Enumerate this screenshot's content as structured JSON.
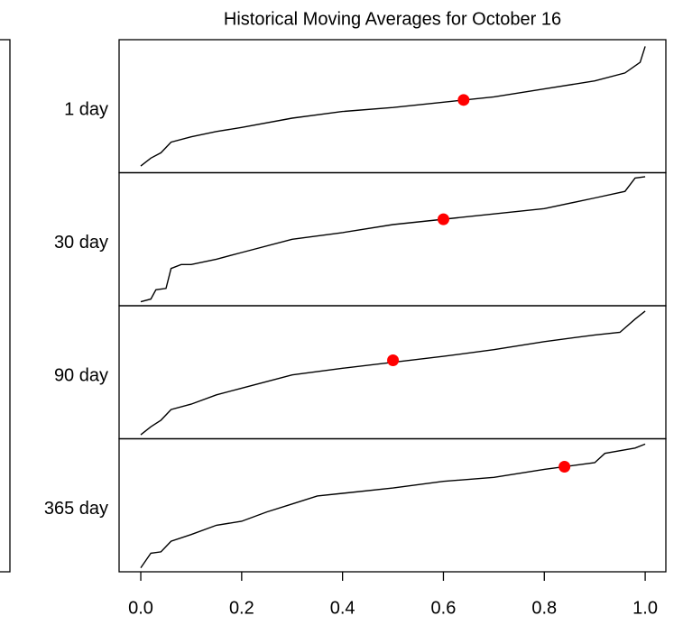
{
  "chart_data": {
    "type": "line",
    "title": "Historical Moving Averages for October 16",
    "xlim": [
      -0.043,
      1.041
    ],
    "xticks": [
      {
        "value": 0,
        "label": "0.0"
      },
      0.2,
      0.4,
      0.6,
      0.8,
      {
        "value": 1,
        "label": "1.0"
      }
    ],
    "line_color": "#000000",
    "point_color": "#ff0000",
    "panels": [
      {
        "name": "1 day",
        "ylim": [
          0,
          1
        ],
        "x": [
          0,
          0.02,
          0.04,
          0.06,
          0.1,
          0.15,
          0.2,
          0.3,
          0.4,
          0.5,
          0.6,
          0.7,
          0.8,
          0.9,
          0.96,
          0.99,
          1.0
        ],
        "values": [
          0.05,
          0.11,
          0.15,
          0.23,
          0.27,
          0.31,
          0.34,
          0.41,
          0.46,
          0.49,
          0.53,
          0.57,
          0.63,
          0.69,
          0.75,
          0.83,
          0.95
        ],
        "point": {
          "x": 0.64,
          "y": 0.547
        }
      },
      {
        "name": "30 day",
        "ylim": [
          0,
          1
        ],
        "x": [
          0,
          0.02,
          0.03,
          0.05,
          0.06,
          0.08,
          0.1,
          0.15,
          0.2,
          0.3,
          0.4,
          0.5,
          0.7,
          0.8,
          0.9,
          0.96,
          0.98,
          1.0
        ],
        "values": [
          0.03,
          0.05,
          0.12,
          0.13,
          0.28,
          0.31,
          0.31,
          0.35,
          0.4,
          0.5,
          0.55,
          0.61,
          0.69,
          0.73,
          0.81,
          0.86,
          0.96,
          0.97
        ],
        "point": {
          "x": 0.6,
          "y": 0.65
        }
      },
      {
        "name": "90 day",
        "ylim": [
          0,
          1
        ],
        "x": [
          0,
          0.02,
          0.04,
          0.06,
          0.1,
          0.15,
          0.2,
          0.3,
          0.4,
          0.6,
          0.7,
          0.8,
          0.9,
          0.95,
          0.98,
          1.0
        ],
        "values": [
          0.03,
          0.09,
          0.14,
          0.22,
          0.26,
          0.33,
          0.38,
          0.48,
          0.53,
          0.62,
          0.67,
          0.73,
          0.78,
          0.8,
          0.9,
          0.96
        ],
        "point": {
          "x": 0.5,
          "y": 0.59
        }
      },
      {
        "name": "365 day",
        "ylim": [
          0,
          1
        ],
        "x": [
          0,
          0.02,
          0.04,
          0.06,
          0.1,
          0.15,
          0.2,
          0.25,
          0.3,
          0.35,
          0.4,
          0.5,
          0.6,
          0.7,
          0.8,
          0.9,
          0.92,
          0.98,
          1.0
        ],
        "values": [
          0.03,
          0.14,
          0.15,
          0.23,
          0.28,
          0.35,
          0.38,
          0.45,
          0.51,
          0.57,
          0.59,
          0.63,
          0.68,
          0.71,
          0.77,
          0.82,
          0.89,
          0.93,
          0.96
        ],
        "point": {
          "x": 0.84,
          "y": 0.79
        }
      }
    ]
  }
}
